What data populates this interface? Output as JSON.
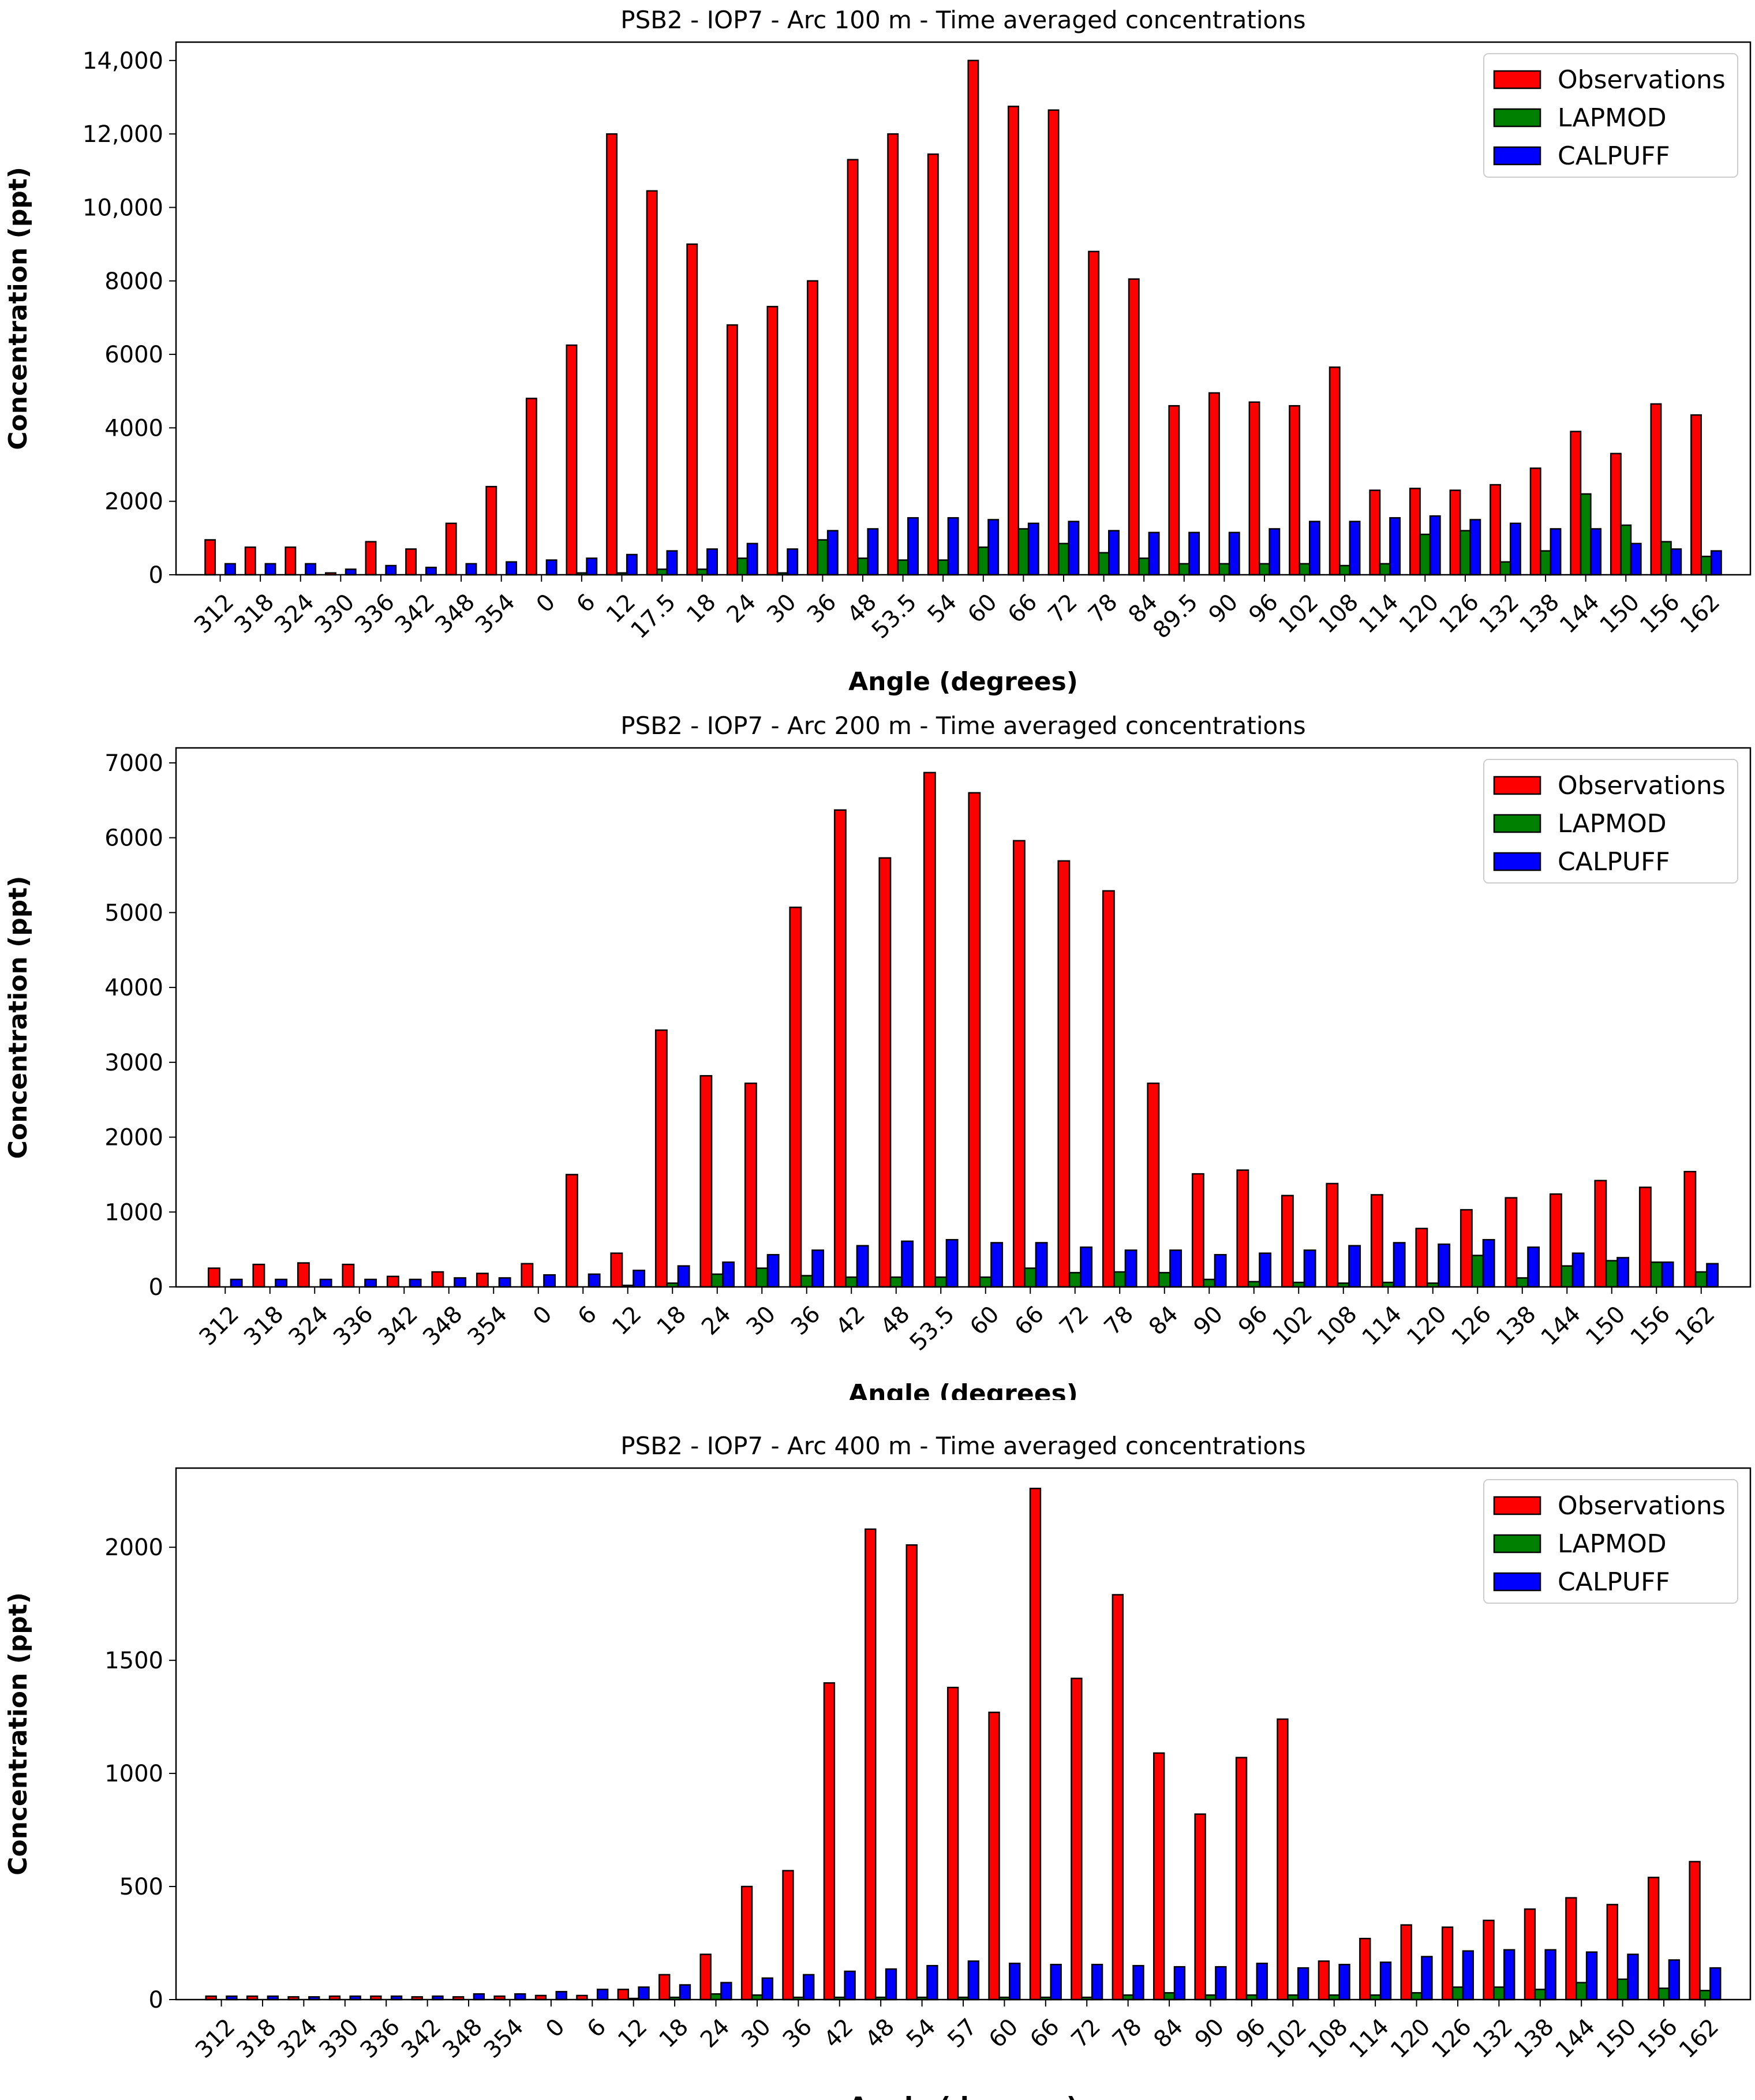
{
  "chart_data": [
    {
      "type": "bar",
      "title": "PSB2 - IOP7 - Arc 100 m - Time averaged concentrations",
      "xlabel": "Angle (degrees)",
      "ylabel": "Concentration (ppt)",
      "ylim": [
        0,
        14500
      ],
      "yticks": [
        0,
        2000,
        4000,
        6000,
        8000,
        10000,
        12000,
        14000
      ],
      "ytick_labels": [
        "0",
        "2000",
        "4000",
        "6000",
        "8000",
        "10,000",
        "12,000",
        "14,000"
      ],
      "legend_position": "top-right",
      "categories": [
        "312",
        "318",
        "324",
        "330",
        "336",
        "342",
        "348",
        "354",
        "0",
        "6",
        "12",
        "17.5",
        "18",
        "24",
        "30",
        "36",
        "48",
        "53.5",
        "54",
        "60",
        "66",
        "72",
        "78",
        "84",
        "89.5",
        "90",
        "96",
        "102",
        "108",
        "114",
        "120",
        "126",
        "132",
        "138",
        "144",
        "150",
        "156",
        "162"
      ],
      "series": [
        {
          "name": "Observations",
          "color": "#ff0000",
          "values": [
            950,
            750,
            750,
            50,
            900,
            700,
            1400,
            2400,
            4800,
            6250,
            12000,
            10450,
            9000,
            6800,
            7300,
            8000,
            11300,
            12000,
            11450,
            14000,
            12750,
            12650,
            8800,
            8050,
            4600,
            4950,
            4700,
            4600,
            5650,
            2300,
            2350,
            2300,
            2450,
            2900,
            3900,
            3300,
            4650,
            4350
          ]
        },
        {
          "name": "LAPMOD",
          "color": "#008000",
          "values": [
            0,
            0,
            0,
            0,
            0,
            0,
            0,
            0,
            0,
            50,
            50,
            150,
            150,
            450,
            50,
            950,
            450,
            400,
            400,
            750,
            1250,
            850,
            600,
            450,
            300,
            300,
            300,
            300,
            250,
            300,
            1100,
            1200,
            350,
            650,
            2200,
            1350,
            900,
            500
          ]
        },
        {
          "name": "CALPUFF",
          "color": "#0000ff",
          "values": [
            300,
            300,
            300,
            150,
            250,
            200,
            300,
            350,
            400,
            450,
            550,
            650,
            700,
            850,
            700,
            1200,
            1250,
            1550,
            1550,
            1500,
            1400,
            1450,
            1200,
            1150,
            1150,
            1150,
            1250,
            1450,
            1450,
            1550,
            1600,
            1500,
            1400,
            1250,
            1250,
            850,
            700,
            650
          ]
        }
      ]
    },
    {
      "type": "bar",
      "title": "PSB2 - IOP7 - Arc 200 m - Time averaged concentrations",
      "xlabel": "Angle (degrees)",
      "ylabel": "Concentration (ppt)",
      "ylim": [
        0,
        7200
      ],
      "yticks": [
        0,
        1000,
        2000,
        3000,
        4000,
        5000,
        6000,
        7000
      ],
      "ytick_labels": [
        "0",
        "1000",
        "2000",
        "3000",
        "4000",
        "5000",
        "6000",
        "7000"
      ],
      "legend_position": "top-right",
      "categories": [
        "312",
        "318",
        "324",
        "336",
        "342",
        "348",
        "354",
        "0",
        "6",
        "12",
        "18",
        "24",
        "30",
        "36",
        "42",
        "48",
        "53.5",
        "60",
        "66",
        "72",
        "78",
        "84",
        "90",
        "96",
        "102",
        "108",
        "114",
        "120",
        "126",
        "138",
        "144",
        "150",
        "156",
        "162"
      ],
      "series": [
        {
          "name": "Observations",
          "color": "#ff0000",
          "values": [
            250,
            300,
            320,
            300,
            140,
            200,
            180,
            310,
            1500,
            450,
            3430,
            2820,
            2720,
            5070,
            6370,
            5730,
            6870,
            6600,
            5960,
            5690,
            5290,
            2720,
            1510,
            1560,
            1220,
            1380,
            1230,
            780,
            1030,
            1190,
            1240,
            1420,
            1330,
            1540
          ]
        },
        {
          "name": "LAPMOD",
          "color": "#008000",
          "values": [
            0,
            0,
            0,
            0,
            0,
            0,
            0,
            0,
            0,
            20,
            50,
            170,
            250,
            150,
            130,
            130,
            130,
            130,
            250,
            190,
            200,
            190,
            100,
            70,
            60,
            50,
            60,
            50,
            420,
            120,
            280,
            350,
            330,
            200
          ]
        },
        {
          "name": "CALPUFF",
          "color": "#0000ff",
          "values": [
            100,
            100,
            100,
            100,
            100,
            120,
            120,
            160,
            170,
            220,
            280,
            330,
            430,
            490,
            550,
            610,
            630,
            590,
            590,
            530,
            490,
            490,
            430,
            450,
            490,
            550,
            590,
            570,
            630,
            530,
            450,
            390,
            330,
            310
          ]
        }
      ]
    },
    {
      "type": "bar",
      "title": "PSB2 - IOP7 - Arc 400 m - Time averaged concentrations",
      "xlabel": "Angle (degrees)",
      "ylabel": "Concentration (ppt)",
      "ylim": [
        0,
        2350
      ],
      "yticks": [
        0,
        500,
        1000,
        1500,
        2000
      ],
      "ytick_labels": [
        "0",
        "500",
        "1000",
        "1500",
        "2000"
      ],
      "legend_position": "top-right",
      "categories": [
        "312",
        "318",
        "324",
        "330",
        "336",
        "342",
        "348",
        "354",
        "0",
        "6",
        "12",
        "18",
        "24",
        "30",
        "36",
        "42",
        "48",
        "54",
        "57",
        "60",
        "66",
        "72",
        "78",
        "84",
        "90",
        "96",
        "102",
        "108",
        "114",
        "120",
        "126",
        "132",
        "138",
        "144",
        "150",
        "156",
        "162"
      ],
      "series": [
        {
          "name": "Observations",
          "color": "#ff0000",
          "values": [
            15,
            15,
            12,
            15,
            15,
            12,
            12,
            15,
            18,
            18,
            45,
            110,
            200,
            500,
            570,
            1400,
            2080,
            2010,
            1380,
            1270,
            2260,
            1420,
            1790,
            1090,
            820,
            1070,
            1240,
            170,
            270,
            330,
            320,
            350,
            400,
            450,
            420,
            540,
            610
          ]
        },
        {
          "name": "LAPMOD",
          "color": "#008000",
          "values": [
            0,
            0,
            0,
            0,
            0,
            0,
            0,
            0,
            0,
            0,
            5,
            10,
            25,
            20,
            10,
            10,
            10,
            10,
            10,
            10,
            10,
            10,
            20,
            30,
            20,
            20,
            20,
            20,
            20,
            30,
            55,
            55,
            45,
            75,
            90,
            50,
            40
          ]
        },
        {
          "name": "CALPUFF",
          "color": "#0000ff",
          "values": [
            15,
            15,
            12,
            15,
            15,
            15,
            25,
            25,
            35,
            45,
            55,
            65,
            75,
            95,
            110,
            125,
            135,
            150,
            170,
            160,
            155,
            155,
            150,
            145,
            145,
            160,
            140,
            155,
            165,
            190,
            215,
            220,
            220,
            210,
            200,
            175,
            140
          ]
        }
      ]
    }
  ]
}
